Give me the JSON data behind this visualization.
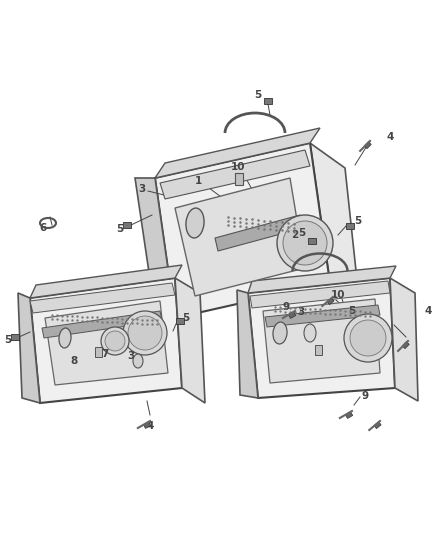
{
  "bg_color": "#ffffff",
  "line_color": "#555555",
  "part_color": "#cccccc",
  "outline_color": "#333333",
  "text_color": "#333333",
  "callout_color": "#444444",
  "figure_size": [
    4.38,
    5.33
  ],
  "dpi": 100
}
